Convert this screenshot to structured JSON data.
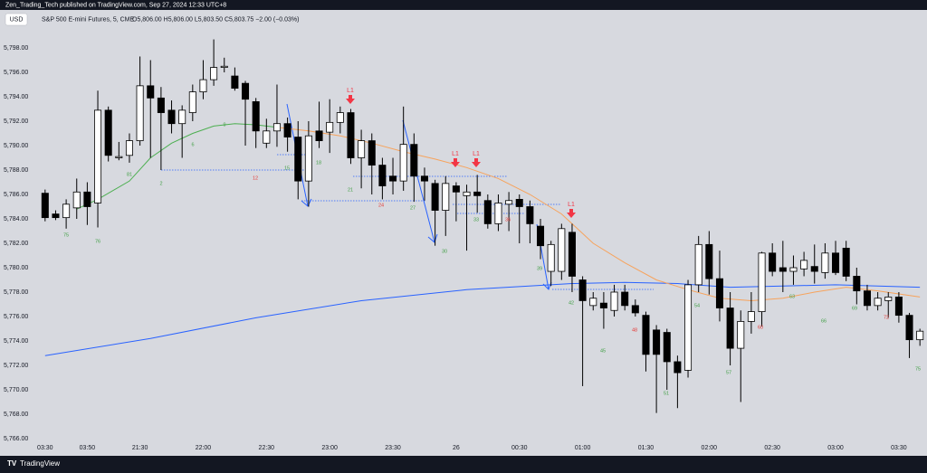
{
  "header": {
    "publisher": "Zen_Trading_Tech published on TradingView.com, Sep 27, 2024 12:33 UTC+8",
    "currency": "USD",
    "footer": "TradingView"
  },
  "chart_data": {
    "type": "candlestick",
    "symbol": "S&P 500 E-mini Futures, 5, CME",
    "quote": "O5,806.00 H5,806.00 L5,803.50 C5,803.75 −2.00 (−0.03%)",
    "categories": [
      "03:30",
      null,
      null,
      null,
      "03:50",
      null,
      null,
      null,
      null,
      "21:30",
      null,
      null,
      null,
      null,
      null,
      "22:00",
      null,
      null,
      null,
      null,
      null,
      "22:30",
      null,
      null,
      null,
      null,
      null,
      "23:00",
      null,
      null,
      null,
      null,
      null,
      "23:30",
      null,
      null,
      null,
      null,
      null,
      "26",
      null,
      null,
      null,
      null,
      null,
      "00:30",
      null,
      null,
      null,
      null,
      null,
      "01:00",
      null,
      null,
      null,
      null,
      null,
      "01:30",
      null,
      null,
      null,
      null,
      null,
      "02:00",
      null,
      null,
      null,
      null,
      null,
      "02:30",
      null,
      null,
      null,
      null,
      null,
      "03:00",
      null,
      null,
      null,
      null,
      null,
      "03:30",
      null,
      null
    ],
    "open": [
      5786.1,
      5784.4,
      5784.1,
      5784.9,
      5786.2,
      5785.3,
      5792.9,
      5789.0,
      5789.2,
      5790.4,
      5794.9,
      5793.9,
      5792.9,
      5791.8,
      5792.7,
      5794.4,
      5795.4,
      5796.4,
      5795.7,
      5795.1,
      5793.6,
      5790.2,
      5791.2,
      5791.8,
      5790.7,
      5787.1,
      5791.2,
      5791.1,
      5791.9,
      5792.7,
      5789.0,
      5790.4,
      5788.4,
      5787.5,
      5787.1,
      5790.1,
      5787.5,
      5786.9,
      5784.7,
      5786.7,
      5785.9,
      5786.2,
      5785.5,
      5783.6,
      5785.2,
      5785.6,
      5785.0,
      5783.4,
      5779.7,
      5779.7,
      5782.9,
      5779.0,
      5776.9,
      5777.1,
      5776.5,
      5778.0,
      5776.9,
      5776.1,
      5774.9,
      5774.7,
      5772.3,
      5771.6,
      5778.6,
      5781.9,
      5779.1,
      5776.7,
      5773.4,
      5775.6,
      5776.4,
      5781.2,
      5780.0,
      5779.7,
      5779.9,
      5780.1,
      5779.6,
      5781.2,
      5781.6,
      5779.3,
      5778.1,
      5776.9,
      5777.3,
      5777.6,
      5776.1,
      5774.1
    ],
    "high": [
      5786.4,
      5784.7,
      5785.6,
      5787.3,
      5787.0,
      5794.5,
      5793.2,
      5790.3,
      5791.0,
      5797.3,
      5797.0,
      5794.8,
      5793.7,
      5793.3,
      5795.0,
      5797.0,
      5798.7,
      5797.2,
      5796.4,
      5795.3,
      5793.9,
      5792.2,
      5795.0,
      5792.3,
      5792.0,
      5792.0,
      5793.6,
      5793.8,
      5793.2,
      5793.0,
      5791.3,
      5791.0,
      5789.0,
      5789.0,
      5793.2,
      5791.0,
      5788.2,
      5787.2,
      5787.5,
      5787.0,
      5786.8,
      5787.6,
      5786.0,
      5786.0,
      5786.2,
      5786.0,
      5785.5,
      5784.0,
      5782.2,
      5783.6,
      5783.6,
      5779.3,
      5778.0,
      5778.0,
      5778.6,
      5778.6,
      5777.4,
      5776.4,
      5775.3,
      5775.0,
      5772.8,
      5779.0,
      5782.6,
      5783.0,
      5781.4,
      5778.0,
      5776.5,
      5778.0,
      5781.3,
      5782.0,
      5782.2,
      5781.0,
      5781.3,
      5781.9,
      5782.0,
      5782.2,
      5782.2,
      5780.0,
      5778.6,
      5778.0,
      5778.0,
      5778.0,
      5776.3,
      5775.0
    ],
    "low": [
      5783.8,
      5783.9,
      5783.2,
      5784.0,
      5783.5,
      5783.3,
      5788.7,
      5788.8,
      5788.6,
      5790.0,
      5789.0,
      5788.0,
      5791.0,
      5789.0,
      5792.0,
      5793.8,
      5794.9,
      5796.0,
      5794.5,
      5790.0,
      5789.8,
      5789.8,
      5789.9,
      5789.5,
      5785.6,
      5785.0,
      5789.8,
      5789.4,
      5791.0,
      5788.5,
      5786.5,
      5786.0,
      5785.6,
      5786.0,
      5786.3,
      5785.4,
      5785.5,
      5781.8,
      5782.6,
      5783.8,
      5781.4,
      5784.5,
      5783.2,
      5783.0,
      5783.0,
      5782.0,
      5782.0,
      5780.7,
      5778.5,
      5779.0,
      5778.0,
      5770.3,
      5776.5,
      5775.0,
      5776.0,
      5776.5,
      5776.0,
      5771.5,
      5768.1,
      5770.0,
      5768.5,
      5771.0,
      5778.0,
      5777.8,
      5775.6,
      5772.0,
      5769.0,
      5774.6,
      5775.2,
      5779.3,
      5778.0,
      5778.6,
      5779.3,
      5778.7,
      5779.1,
      5779.4,
      5778.9,
      5777.0,
      5776.5,
      5776.5,
      5775.9,
      5775.5,
      5772.6,
      5773.6
    ],
    "close": [
      5784.1,
      5784.1,
      5785.2,
      5786.2,
      5785.0,
      5792.9,
      5789.2,
      5789.1,
      5790.4,
      5794.9,
      5793.9,
      5792.7,
      5791.8,
      5792.9,
      5794.4,
      5795.4,
      5796.4,
      5796.5,
      5794.7,
      5793.8,
      5791.2,
      5791.2,
      5791.8,
      5790.7,
      5787.1,
      5790.8,
      5790.4,
      5791.9,
      5792.7,
      5789.0,
      5790.4,
      5788.4,
      5786.7,
      5787.1,
      5790.1,
      5787.5,
      5787.1,
      5784.7,
      5786.9,
      5786.2,
      5786.2,
      5785.9,
      5783.6,
      5785.3,
      5785.5,
      5785.0,
      5783.6,
      5781.8,
      5781.9,
      5783.2,
      5779.3,
      5777.3,
      5777.5,
      5776.7,
      5778.0,
      5776.9,
      5776.3,
      5772.9,
      5772.9,
      5772.3,
      5771.4,
      5778.6,
      5781.9,
      5779.1,
      5776.7,
      5773.4,
      5775.6,
      5776.4,
      5781.2,
      5779.7,
      5779.7,
      5780.0,
      5780.6,
      5779.7,
      5781.2,
      5779.6,
      5779.3,
      5778.1,
      5776.9,
      5777.5,
      5777.6,
      5776.1,
      5774.1,
      5774.8
    ],
    "up_color": "#ffffff",
    "down_color": "#000000",
    "lines": [
      {
        "color": "#2962ff",
        "x": [
          0,
          10,
          20,
          30,
          40,
          50,
          55,
          60,
          65,
          70,
          75,
          83
        ],
        "values": [
          5772.8,
          5774.2,
          5775.9,
          5777.3,
          5778.2,
          5778.7,
          5778.8,
          5778.7,
          5778.4,
          5778.5,
          5778.6,
          5778.4
        ]
      },
      {
        "color": "#4caf50",
        "x": [
          3,
          5,
          8,
          10,
          12,
          14,
          16,
          18,
          20,
          22
        ],
        "values": [
          5784.8,
          5785.6,
          5787.1,
          5789.0,
          5790.2,
          5791.0,
          5791.6,
          5791.8,
          5791.7,
          5791.5
        ]
      },
      {
        "color": "#f7a35c",
        "x": [
          22,
          25,
          28,
          31,
          34,
          37,
          40,
          43,
          46,
          49,
          52,
          55,
          58,
          61,
          64,
          67,
          70,
          73,
          76,
          79,
          83
        ],
        "values": [
          5791.5,
          5791.2,
          5790.8,
          5790.2,
          5789.5,
          5788.9,
          5788.2,
          5787.3,
          5786.0,
          5784.4,
          5782.0,
          5780.4,
          5779.0,
          5778.2,
          5777.5,
          5777.3,
          5777.5,
          5778.0,
          5778.4,
          5778.1,
          5777.6
        ]
      }
    ],
    "annotations": [
      {
        "text": "75",
        "color": "#43a047"
      },
      {
        "text": "76",
        "color": "#43a047"
      },
      {
        "text": "81",
        "color": "#43a047"
      },
      {
        "text": "2",
        "color": "#43a047"
      },
      {
        "text": "6",
        "color": "#43a047"
      },
      {
        "text": "9",
        "color": "#43a047"
      },
      {
        "text": "12",
        "color": "#e53935"
      },
      {
        "text": "15",
        "color": "#43a047"
      },
      {
        "text": "18",
        "color": "#43a047"
      },
      {
        "text": "21",
        "color": "#43a047"
      },
      {
        "text": "24",
        "color": "#e53935"
      },
      {
        "text": "27",
        "color": "#43a047"
      },
      {
        "text": "30",
        "color": "#43a047"
      },
      {
        "text": "33",
        "color": "#43a047"
      },
      {
        "text": "36",
        "color": "#e53935"
      },
      {
        "text": "39",
        "color": "#43a047"
      },
      {
        "text": "42",
        "color": "#43a047"
      },
      {
        "text": "45",
        "color": "#43a047"
      },
      {
        "text": "48",
        "color": "#e53935"
      },
      {
        "text": "51",
        "color": "#43a047"
      },
      {
        "text": "54",
        "color": "#43a047"
      },
      {
        "text": "57",
        "color": "#43a047"
      },
      {
        "text": "60",
        "color": "#e53935"
      },
      {
        "text": "63",
        "color": "#43a047"
      },
      {
        "text": "66",
        "color": "#43a047"
      },
      {
        "text": "69",
        "color": "#43a047"
      },
      {
        "text": "72",
        "color": "#e53935"
      },
      {
        "text": "75",
        "color": "#43a047"
      }
    ],
    "signals": [
      {
        "text": "L1",
        "color": "#f23645"
      },
      {
        "text": "L1",
        "color": "#f23645"
      },
      {
        "text": "L1",
        "color": "#f23645"
      },
      {
        "text": "L1",
        "color": "#f23645"
      }
    ],
    "ylim": [
      5765.6,
      5801.2
    ],
    "yticks": [
      {
        "value": 5766,
        "label": "5,766.00"
      },
      {
        "value": 5768,
        "label": "5,768.00"
      },
      {
        "value": 5770,
        "label": "5,770.00"
      },
      {
        "value": 5772,
        "label": "5,772.00"
      },
      {
        "value": 5774,
        "label": "5,774.00"
      },
      {
        "value": 5776,
        "label": "5,776.00"
      },
      {
        "value": 5778,
        "label": "5,778.00"
      },
      {
        "value": 5780,
        "label": "5,780.00"
      },
      {
        "value": 5782,
        "label": "5,782.00"
      },
      {
        "value": 5784,
        "label": "5,784.00"
      },
      {
        "value": 5786,
        "label": "5,786.00"
      },
      {
        "value": 5788,
        "label": "5,788.00"
      },
      {
        "value": 5790,
        "label": "5,790.00"
      },
      {
        "value": 5792,
        "label": "5,792.00"
      },
      {
        "value": 5794,
        "label": "5,794.00"
      },
      {
        "value": 5796,
        "label": "5,796.00"
      },
      {
        "value": 5798,
        "label": "5,798.00"
      }
    ]
  }
}
